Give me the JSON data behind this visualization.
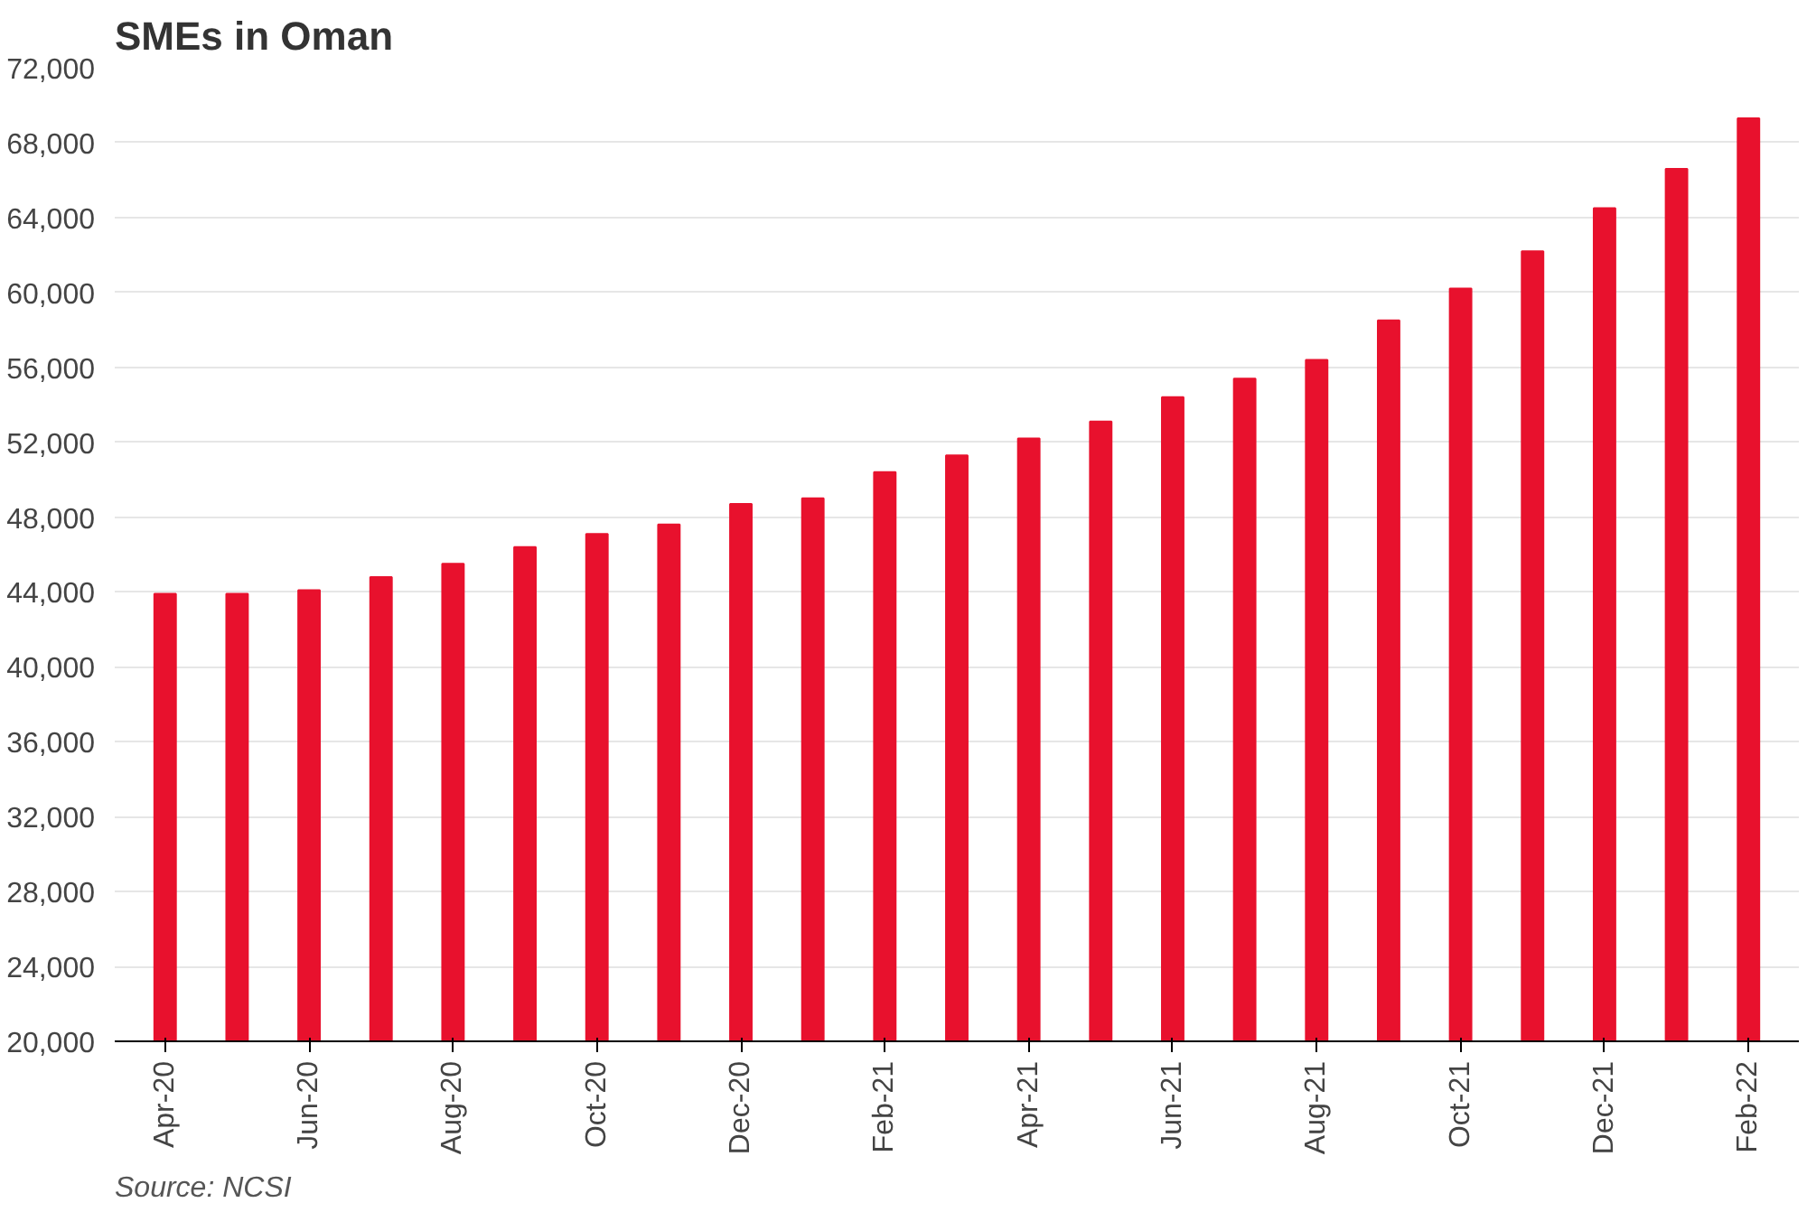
{
  "chart_data": {
    "type": "bar",
    "title": "SMEs in Oman",
    "categories": [
      "Apr-20",
      null,
      "Jun-20",
      null,
      "Aug-20",
      null,
      "Oct-20",
      null,
      "Dec-20",
      null,
      "Feb-21",
      null,
      "Apr-21",
      null,
      "Jun-21",
      null,
      "Aug-21",
      null,
      "Oct-21",
      null,
      "Dec-21",
      null,
      "Feb-22"
    ],
    "values": [
      43900,
      43900,
      44100,
      44800,
      45500,
      46400,
      47100,
      47600,
      48700,
      49000,
      50400,
      51300,
      52200,
      53100,
      54400,
      55400,
      56400,
      58500,
      60200,
      62200,
      64500,
      66600,
      69300
    ],
    "color": "#e8112d",
    "ylim": [
      20000,
      72000
    ],
    "yticks": [
      {
        "value": 20000,
        "label": "20,000"
      },
      {
        "value": 24000,
        "label": "24,000"
      },
      {
        "value": 28000,
        "label": "28,000"
      },
      {
        "value": 32000,
        "label": "32,000"
      },
      {
        "value": 36000,
        "label": "36,000"
      },
      {
        "value": 40000,
        "label": "40,000"
      },
      {
        "value": 44000,
        "label": "44,000"
      },
      {
        "value": 48000,
        "label": "48,000"
      },
      {
        "value": 52000,
        "label": "52,000"
      },
      {
        "value": 56000,
        "label": "56,000"
      },
      {
        "value": 60000,
        "label": "60,000"
      },
      {
        "value": 64000,
        "label": "64,000"
      },
      {
        "value": 68000,
        "label": "68,000"
      },
      {
        "value": 72000,
        "label": "72,000"
      }
    ],
    "grid": "y",
    "annotations": [
      "Source: NCSI"
    ]
  }
}
